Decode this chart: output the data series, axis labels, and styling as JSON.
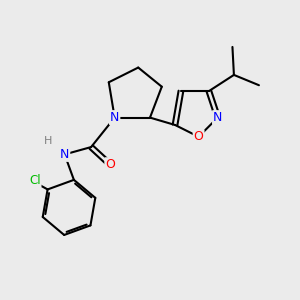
{
  "background_color": "#ebebeb",
  "bond_color": "#000000",
  "atom_colors": {
    "N": "#0000ff",
    "O": "#ff0000",
    "Cl": "#00bb00",
    "C": "#000000",
    "H": "#808080"
  },
  "figsize": [
    3.0,
    3.0
  ],
  "dpi": 100
}
